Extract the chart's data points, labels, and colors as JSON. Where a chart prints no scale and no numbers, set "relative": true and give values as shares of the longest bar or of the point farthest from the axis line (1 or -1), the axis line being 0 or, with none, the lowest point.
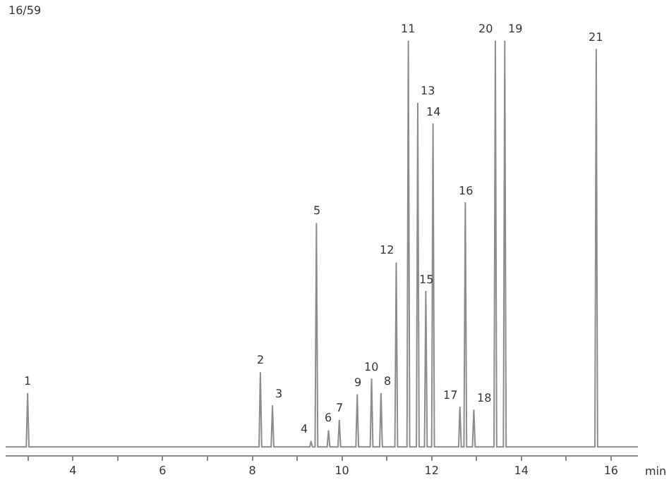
{
  "chart_data": {
    "type": "line",
    "relative": true,
    "xlabel": "min",
    "grid": false,
    "marker": "none",
    "line_style": "solid",
    "xlim": [
      2.5,
      16.6
    ],
    "xticks": [
      {
        "value": 3,
        "label": null
      },
      4,
      {
        "value": 5,
        "label": null
      },
      6,
      {
        "value": 7,
        "label": null
      },
      8,
      {
        "value": 9,
        "label": null
      },
      10,
      {
        "value": 11,
        "label": null
      },
      12,
      {
        "value": 13,
        "label": null
      },
      14,
      {
        "value": 15,
        "label": null
      },
      16
    ],
    "series": [
      {
        "color": "#8c8c8c",
        "x": [
          2.5,
          2.96,
          2.99,
          3.02,
          8.15,
          8.18,
          8.21,
          8.42,
          8.45,
          8.48,
          9.28,
          9.31,
          9.34,
          9.4,
          9.43,
          9.46,
          9.67,
          9.7,
          9.73,
          9.91,
          9.94,
          9.97,
          10.31,
          10.34,
          10.37,
          10.63,
          10.66,
          10.69,
          10.84,
          10.87,
          10.9,
          11.18,
          11.21,
          11.24,
          11.45,
          11.48,
          11.51,
          11.66,
          11.69,
          11.72,
          11.84,
          11.87,
          11.9,
          12.0,
          12.03,
          12.06,
          12.6,
          12.63,
          12.66,
          12.72,
          12.75,
          12.78,
          12.91,
          12.94,
          12.97,
          13.39,
          13.42,
          13.45,
          13.6,
          13.63,
          13.66,
          15.64,
          15.67,
          15.7,
          16.6
        ],
        "values": [
          0.02,
          0.02,
          0.15,
          0.02,
          0.02,
          0.2,
          0.02,
          0.02,
          0.12,
          0.02,
          0.02,
          0.034,
          0.02,
          0.02,
          0.56,
          0.02,
          0.02,
          0.06,
          0.02,
          0.02,
          0.085,
          0.02,
          0.02,
          0.147,
          0.02,
          0.02,
          0.185,
          0.02,
          0.02,
          0.15,
          0.02,
          0.02,
          0.465,
          0.02,
          0.02,
          1.0,
          0.02,
          0.02,
          0.85,
          0.02,
          0.02,
          0.396,
          0.02,
          0.02,
          0.8,
          0.02,
          0.02,
          0.117,
          0.02,
          0.02,
          0.61,
          0.02,
          0.02,
          0.11,
          0.02,
          0.02,
          1.0,
          0.02,
          0.02,
          1.0,
          0.02,
          0.02,
          0.98,
          0.02,
          0.02
        ]
      }
    ],
    "annotations": [
      "16/59",
      {
        "text": "1",
        "x": 2.99,
        "y": 0.15
      },
      {
        "text": "2",
        "x": 8.18,
        "y": 0.2
      },
      {
        "text": "3",
        "x": 8.45,
        "y": 0.12
      },
      {
        "text": "4",
        "x": 9.31,
        "y": 0.034
      },
      {
        "text": "5",
        "x": 9.43,
        "y": 0.56
      },
      {
        "text": "6",
        "x": 9.7,
        "y": 0.06
      },
      {
        "text": "7",
        "x": 9.94,
        "y": 0.085
      },
      {
        "text": "9",
        "x": 10.34,
        "y": 0.147
      },
      {
        "text": "10",
        "x": 10.66,
        "y": 0.185
      },
      {
        "text": "8",
        "x": 10.87,
        "y": 0.15
      },
      {
        "text": "12",
        "x": 11.21,
        "y": 0.465
      },
      {
        "text": "11",
        "x": 11.48,
        "y": 1.0
      },
      {
        "text": "13",
        "x": 11.69,
        "y": 0.85
      },
      {
        "text": "15",
        "x": 11.87,
        "y": 0.396
      },
      {
        "text": "14",
        "x": 12.03,
        "y": 0.8
      },
      {
        "text": "17",
        "x": 12.63,
        "y": 0.117
      },
      {
        "text": "16",
        "x": 12.75,
        "y": 0.61
      },
      {
        "text": "18",
        "x": 12.94,
        "y": 0.11
      },
      {
        "text": "20",
        "x": 13.42,
        "y": 1.0
      },
      {
        "text": "19",
        "x": 13.63,
        "y": 1.0
      },
      {
        "text": "21",
        "x": 15.67,
        "y": 0.98
      }
    ]
  }
}
